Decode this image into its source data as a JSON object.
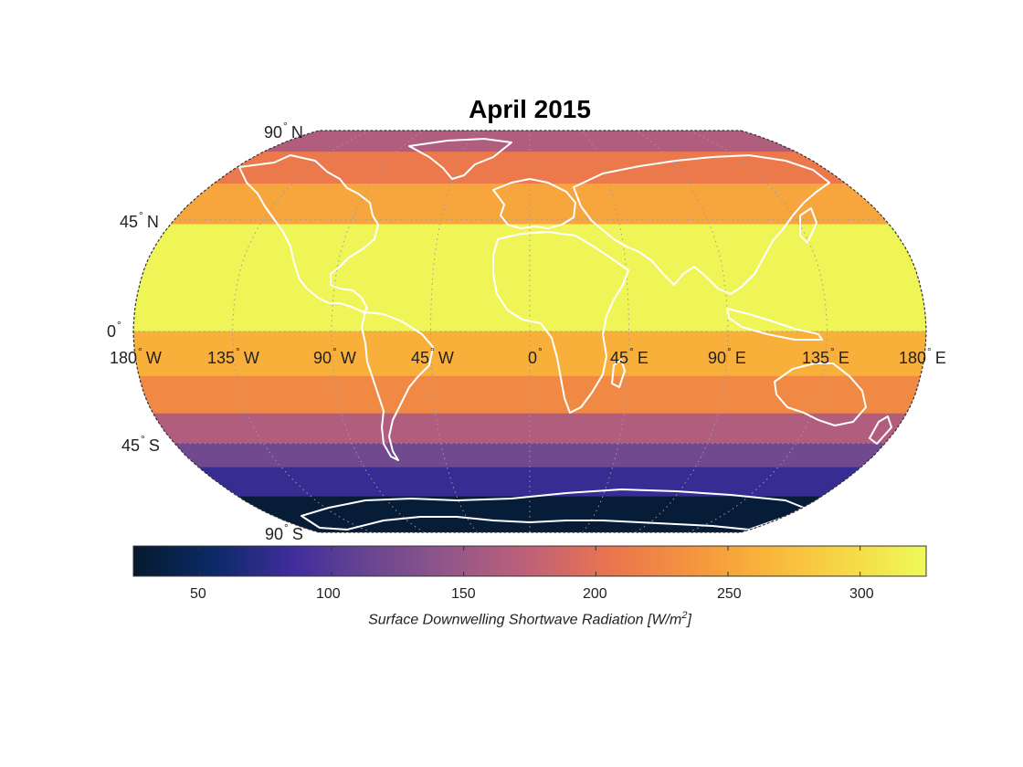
{
  "title": "April 2015",
  "map": {
    "projection": "Robinson",
    "background": "#ffffff",
    "coastline_color": "#ffffff",
    "graticule": "dotted",
    "bands": [
      {
        "from": 90,
        "to": 75,
        "value": 165
      },
      {
        "from": 75,
        "to": 60,
        "value": 210
      },
      {
        "from": 60,
        "to": 43,
        "value": 250
      },
      {
        "from": 43,
        "to": 0,
        "value": 320
      },
      {
        "from": 0,
        "to": -18,
        "value": 260
      },
      {
        "from": -18,
        "to": -33,
        "value": 225
      },
      {
        "from": -33,
        "to": -45,
        "value": 165
      },
      {
        "from": -45,
        "to": -55,
        "value": 120
      },
      {
        "from": -55,
        "to": -68,
        "value": 80
      },
      {
        "from": -68,
        "to": -90,
        "value": 30
      }
    ]
  },
  "lat_labels": [
    {
      "id": "lat-90n",
      "num": "90",
      "dir": "N"
    },
    {
      "id": "lat-45n",
      "num": "45",
      "dir": "N"
    },
    {
      "id": "lat-0",
      "num": "0",
      "dir": ""
    },
    {
      "id": "lat-45s",
      "num": "45",
      "dir": "S"
    },
    {
      "id": "lat-90s",
      "num": "90",
      "dir": "S"
    }
  ],
  "lon_labels": [
    {
      "id": "lon-180w",
      "num": "180",
      "dir": "W"
    },
    {
      "id": "lon-135w",
      "num": "135",
      "dir": "W"
    },
    {
      "id": "lon-90w",
      "num": "90",
      "dir": "W"
    },
    {
      "id": "lon-45w",
      "num": "45",
      "dir": "W"
    },
    {
      "id": "lon-0",
      "num": "0",
      "dir": ""
    },
    {
      "id": "lon-45e",
      "num": "45",
      "dir": "E"
    },
    {
      "id": "lon-90e",
      "num": "90",
      "dir": "E"
    },
    {
      "id": "lon-135e",
      "num": "135",
      "dir": "E"
    },
    {
      "id": "lon-180e",
      "num": "180",
      "dir": "E"
    }
  ],
  "colorbar": {
    "min": 25,
    "max": 325,
    "ticks": [
      50,
      100,
      150,
      200,
      250,
      300
    ],
    "tick_labels": [
      "50",
      "100",
      "150",
      "200",
      "250",
      "300"
    ],
    "label_main": "Surface Downwelling Shortwave Radiation [W/m",
    "label_sup": "2",
    "label_end": "]",
    "colors": [
      "#05192d",
      "#0b2a66",
      "#3f2d9c",
      "#6a4690",
      "#94578a",
      "#c06178",
      "#e9744e",
      "#f4933f",
      "#f9b63a",
      "#f6d846",
      "#eefa5a"
    ]
  }
}
